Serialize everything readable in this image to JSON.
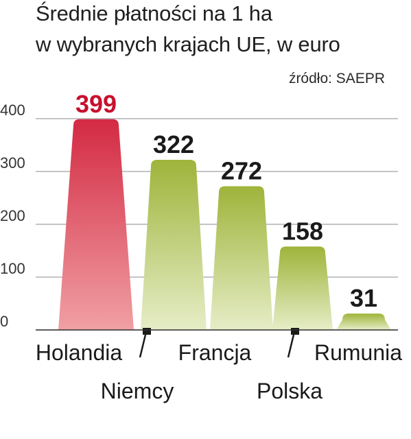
{
  "title_line1": "Średnie płatności na 1 ha",
  "title_line2": "w wybranych krajach UE, w euro",
  "source": "źródło: SAEPR",
  "chart_data": {
    "type": "bar",
    "categories": [
      "Holandia",
      "Niemcy",
      "Francja",
      "Polska",
      "Rumunia"
    ],
    "values": [
      399,
      322,
      272,
      158,
      31
    ],
    "value_labels": [
      "399",
      "322",
      "272",
      "158",
      "31"
    ],
    "title": "Średnie płatności na 1 ha w wybranych krajach UE, w euro",
    "xlabel": "",
    "ylabel": "",
    "ylim": [
      0,
      400
    ],
    "yticks": [
      0,
      100,
      200,
      300,
      400
    ],
    "ytick_labels": [
      "0",
      "100",
      "200",
      "300",
      "400"
    ],
    "grid": true,
    "legend": "none",
    "highlight_category": "Holandia",
    "colors": {
      "highlight_bar": "#d32a43",
      "highlight_bar_light": "#f0a0a4",
      "highlight_label": "#c8102e",
      "default_bar": "#9eb43a",
      "default_bar_light": "#e6edc7",
      "default_label": "#1a1a1a",
      "grid": "#b0b0b0",
      "axis_text": "#333333",
      "category_text": "#1a1a1a"
    }
  }
}
